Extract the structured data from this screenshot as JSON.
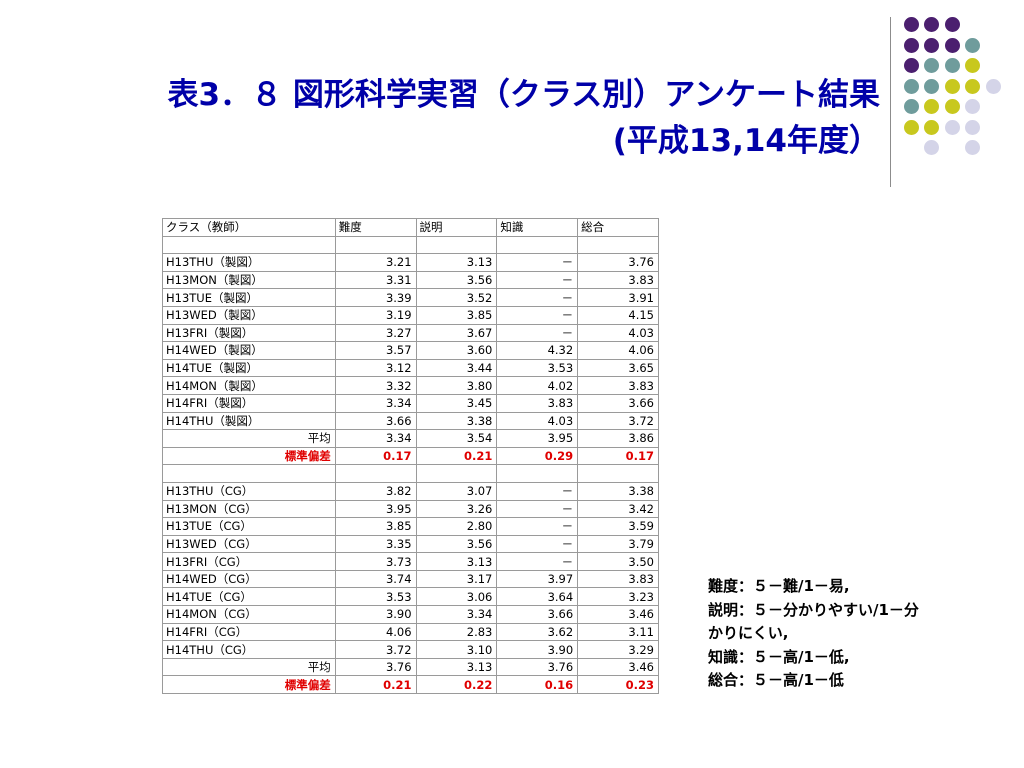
{
  "slide": {
    "title_line1": "表3．８ 図形科学実習（クラス別）アンケート結果",
    "title_line2": "(平成13,14年度）",
    "colors": {
      "title": "#0000a8",
      "dot_purple": "#4b1f6f",
      "dot_teal": "#6f9c9c",
      "dot_yellow": "#c8c81e",
      "dot_lavender": "#d4d4e8",
      "sd_red": "#e00000"
    }
  },
  "table": {
    "headers": [
      "クラス（教師）",
      "難度",
      "説明",
      "知識",
      "総合"
    ],
    "group1": [
      [
        "H13THU（製図）",
        "3.21",
        "3.13",
        "－",
        "3.76"
      ],
      [
        "H13MON（製図）",
        "3.31",
        "3.56",
        "－",
        "3.83"
      ],
      [
        "H13TUE（製図）",
        "3.39",
        "3.52",
        "－",
        "3.91"
      ],
      [
        "H13WED（製図）",
        "3.19",
        "3.85",
        "－",
        "4.15"
      ],
      [
        "H13FRI（製図）",
        "3.27",
        "3.67",
        "－",
        "4.03"
      ],
      [
        "H14WED（製図）",
        "3.57",
        "3.60",
        "4.32",
        "4.06"
      ],
      [
        "H14TUE（製図）",
        "3.12",
        "3.44",
        "3.53",
        "3.65"
      ],
      [
        "H14MON（製図）",
        "3.32",
        "3.80",
        "4.02",
        "3.83"
      ],
      [
        "H14FRI（製図）",
        "3.34",
        "3.45",
        "3.83",
        "3.66"
      ],
      [
        "H14THU（製図）",
        "3.66",
        "3.38",
        "4.03",
        "3.72"
      ]
    ],
    "group1_avg": [
      "平均",
      "3.34",
      "3.54",
      "3.95",
      "3.86"
    ],
    "group1_sd": [
      "標準偏差",
      "0.17",
      "0.21",
      "0.29",
      "0.17"
    ],
    "group2": [
      [
        "H13THU（CG）",
        "3.82",
        "3.07",
        "－",
        "3.38"
      ],
      [
        "H13MON（CG）",
        "3.95",
        "3.26",
        "－",
        "3.42"
      ],
      [
        "H13TUE（CG）",
        "3.85",
        "2.80",
        "－",
        "3.59"
      ],
      [
        "H13WED（CG）",
        "3.35",
        "3.56",
        "－",
        "3.79"
      ],
      [
        "H13FRI（CG）",
        "3.73",
        "3.13",
        "－",
        "3.50"
      ],
      [
        "H14WED（CG）",
        "3.74",
        "3.17",
        "3.97",
        "3.83"
      ],
      [
        "H14TUE（CG）",
        "3.53",
        "3.06",
        "3.64",
        "3.23"
      ],
      [
        "H14MON（CG）",
        "3.90",
        "3.34",
        "3.66",
        "3.46"
      ],
      [
        "H14FRI（CG）",
        "4.06",
        "2.83",
        "3.62",
        "3.11"
      ],
      [
        "H14THU（CG）",
        "3.72",
        "3.10",
        "3.90",
        "3.29"
      ]
    ],
    "group2_avg": [
      "平均",
      "3.76",
      "3.13",
      "3.76",
      "3.46"
    ],
    "group2_sd": [
      "標準偏差",
      "0.21",
      "0.22",
      "0.16",
      "0.23"
    ]
  },
  "legend": {
    "line1": "難度：５－難/1－易,",
    "line2": "説明：５－分かりやすい/1－分",
    "line3": "かりにくい,",
    "line4": "知識：５－高/1－低,",
    "line5": "総合：５－高/1－低"
  }
}
